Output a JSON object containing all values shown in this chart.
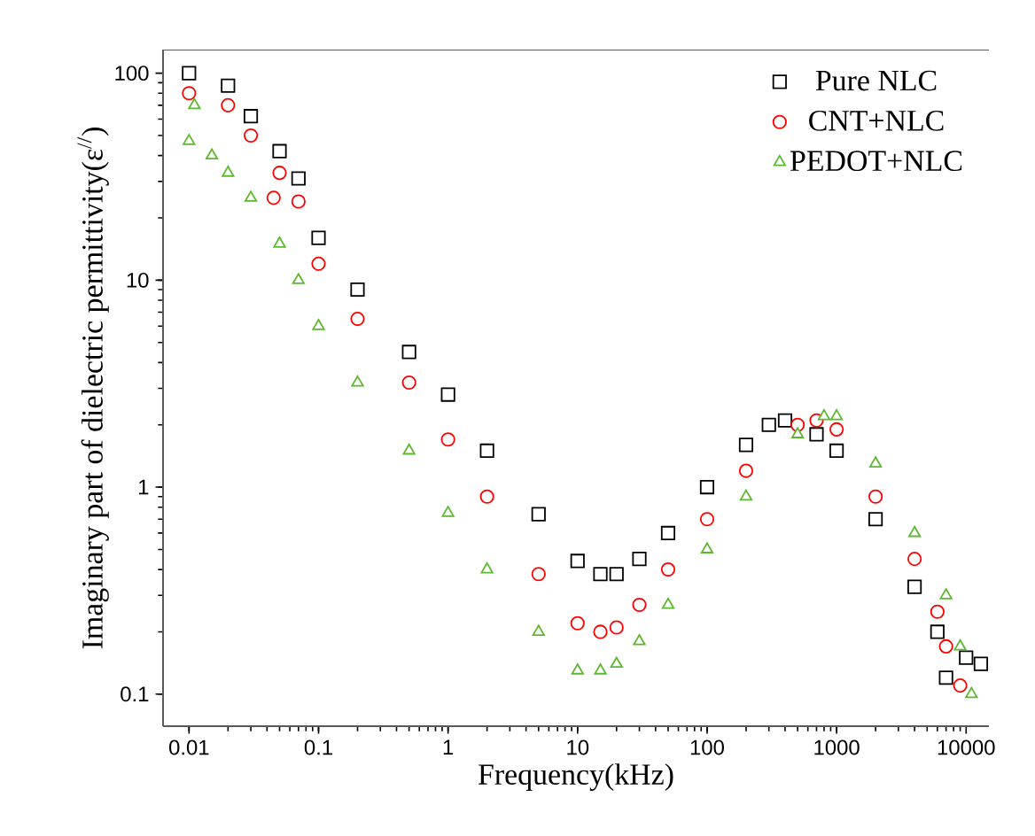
{
  "chart_data": {
    "type": "scatter",
    "xlabel": "Frequency(kHz)",
    "ylabel": "Imaginary part of  dielectric permittivity(ε$^{//}$)",
    "log": "xy",
    "xlim": [
      0.0063,
      15000
    ],
    "ylim": [
      0.07,
      130
    ],
    "xticks": [
      0.01,
      0.1,
      1,
      10,
      100,
      1000,
      10000
    ],
    "yticks": [
      0.1,
      1,
      10,
      100
    ],
    "legend": "top right",
    "grid": false,
    "series": [
      {
        "name": "Pure NLC",
        "color": "#000000",
        "marker": "square",
        "x": [
          0.01,
          0.02,
          0.03,
          0.05,
          0.07,
          0.1,
          0.2,
          0.5,
          1,
          2,
          5,
          10,
          15,
          20,
          30,
          50,
          100,
          200,
          300,
          400,
          700,
          1000,
          2000,
          4000,
          6000,
          7000,
          10000,
          13000
        ],
        "values": [
          100,
          87,
          62,
          42,
          31,
          16,
          9,
          4.5,
          2.8,
          1.5,
          0.74,
          0.44,
          0.38,
          0.38,
          0.45,
          0.6,
          1.0,
          1.6,
          2.0,
          2.1,
          1.8,
          1.5,
          0.7,
          0.33,
          0.2,
          0.12,
          0.15,
          0.14
        ]
      },
      {
        "name": "CNT+NLC",
        "color": "#ff0000",
        "marker": "circle",
        "x": [
          0.01,
          0.02,
          0.03,
          0.045,
          0.05,
          0.07,
          0.1,
          0.2,
          0.5,
          1,
          2,
          5,
          10,
          15,
          20,
          30,
          50,
          100,
          200,
          500,
          700,
          1000,
          2000,
          4000,
          6000,
          7000,
          9000
        ],
        "values": [
          80,
          70,
          50,
          25,
          33,
          24,
          12,
          6.5,
          3.2,
          1.7,
          0.9,
          0.38,
          0.22,
          0.2,
          0.21,
          0.27,
          0.4,
          0.7,
          1.2,
          2.0,
          2.1,
          1.9,
          0.9,
          0.45,
          0.25,
          0.17,
          0.11
        ]
      },
      {
        "name": "PEDOT+NLC",
        "color": "#5cb82e",
        "marker": "triangle",
        "x": [
          0.01,
          0.011,
          0.015,
          0.02,
          0.03,
          0.05,
          0.07,
          0.1,
          0.2,
          0.5,
          1,
          2,
          5,
          10,
          15,
          20,
          30,
          50,
          100,
          200,
          500,
          800,
          1000,
          2000,
          4000,
          7000,
          9000,
          11000
        ],
        "values": [
          47,
          70,
          40,
          33,
          25,
          15,
          10,
          6,
          3.2,
          1.5,
          0.75,
          0.4,
          0.2,
          0.13,
          0.13,
          0.14,
          0.18,
          0.27,
          0.5,
          0.9,
          1.8,
          2.2,
          2.2,
          1.3,
          0.6,
          0.3,
          0.17,
          0.1
        ]
      }
    ]
  }
}
